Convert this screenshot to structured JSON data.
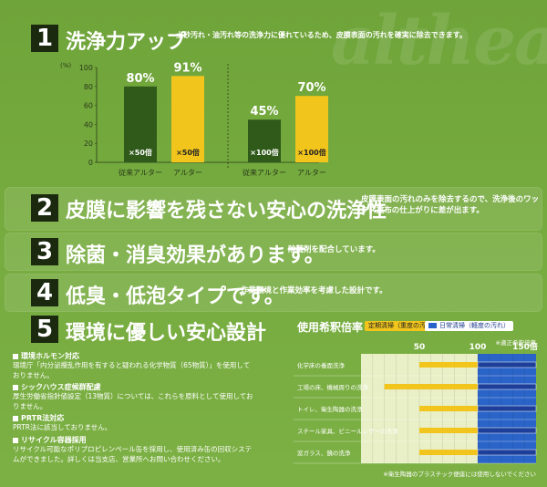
{
  "watermark": "althea",
  "sections": [
    {
      "number": "1",
      "title": "洗浄力アップ",
      "desc": "土砂汚れ・油汚れ等の洗浄力に優れているため、皮膜表面の汚れを確実に除去できます。"
    },
    {
      "number": "2",
      "title": "皮膜に影響を残さない安心の洗浄性",
      "desc": "皮膜表面の汚れのみを除去するので、洗浄後のワックス塗布の仕上がりに差が出ます。"
    },
    {
      "number": "3",
      "title": "除菌・消臭効果があります。",
      "desc": "除菌剤を配合しています。"
    },
    {
      "number": "4",
      "title": "低臭・低泡タイプです。",
      "desc": "作業環境と作業効率を考慮した設計です。"
    },
    {
      "number": "5",
      "title": "環境に優しい安心設計",
      "desc": ""
    }
  ],
  "chart_data": {
    "type": "bar",
    "unit_label": "(%)",
    "ylim": [
      0,
      100
    ],
    "yticks": [
      "0",
      "20",
      "40",
      "60",
      "80",
      "100"
    ],
    "groups": [
      {
        "bars": [
          {
            "category": "従来アルター",
            "value": 80,
            "label": "80%",
            "inner": "×50倍",
            "color": "#2f5a1a"
          },
          {
            "category": "アルター",
            "value": 91,
            "label": "91%",
            "inner": "×50倍",
            "color": "#f2c51c"
          }
        ]
      },
      {
        "bars": [
          {
            "category": "従来アルター",
            "value": 45,
            "label": "45%",
            "inner": "×100倍",
            "color": "#2f5a1a"
          },
          {
            "category": "アルター",
            "value": 70,
            "label": "70%",
            "inner": "×100倍",
            "color": "#f2c51c"
          }
        ]
      }
    ]
  },
  "env": {
    "items": [
      {
        "head": "環境ホルモン対応",
        "text": "環境庁「内分泌攪乱作用を有すると疑われる化学物質（65物質）」を使用しておりません。"
      },
      {
        "head": "シックハウス症候群配慮",
        "text": "厚生労働省指針値設定（13物質）については、これらを原料として使用しておりません。"
      },
      {
        "head": "PRTR法対応",
        "text": "PRTR法に該当しておりません。"
      },
      {
        "head": "リサイクル容器採用",
        "text": "リサイクル可能なポリプロピレンペール缶を採用し、使用済み缶の回収システムができました。詳しくは当支店、営業所へお問い合わせください。"
      }
    ]
  },
  "dilution": {
    "title": "使用希釈倍率",
    "legend": [
      {
        "label": "定期清掃（重度の汚れ）",
        "color": "#f2c51c"
      },
      {
        "label": "日常清掃（軽度の汚れ）",
        "color": "#2a64c8"
      }
    ],
    "top_note": "※適正希釈倍率",
    "axis": [
      "50",
      "100",
      "150倍"
    ],
    "rows": [
      {
        "label": "化学床の養面洗浄",
        "yellow": [
          50,
          100
        ],
        "blue": [
          100,
          150
        ]
      },
      {
        "label": "工場の床、機械周りの洗浄",
        "yellow": [
          20,
          100
        ],
        "blue": [
          100,
          150
        ]
      },
      {
        "label": "トイレ、衛生陶器の洗浄",
        "yellow": [
          50,
          100
        ],
        "blue": [
          100,
          150
        ]
      },
      {
        "label": "スチール家具、ビニールレザーの洗浄",
        "yellow": [
          50,
          100
        ],
        "blue": [
          100,
          150
        ]
      },
      {
        "label": "窓ガラス、鏡の洗浄",
        "yellow": [
          50,
          100
        ],
        "blue": [
          100,
          150
        ]
      }
    ],
    "bottom_note": "※衛生陶器のプラスチック便座には使用しないでください"
  }
}
